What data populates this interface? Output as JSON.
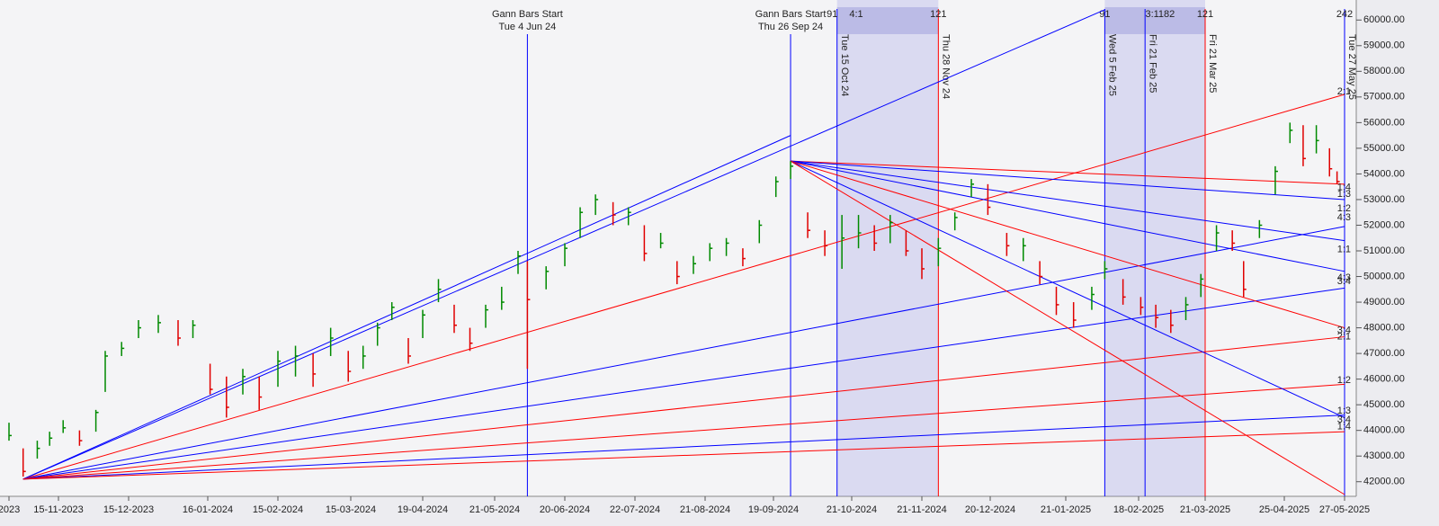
{
  "chart_data": {
    "type": "ohlc",
    "x": [
      "2023-10-18",
      "2023-10-26",
      "2023-11-03",
      "2023-11-10",
      "2023-11-17",
      "2023-11-24",
      "2023-12-01",
      "2023-12-05",
      "2023-12-12",
      "2023-12-19",
      "2023-12-27",
      "2024-01-04",
      "2024-01-10",
      "2024-01-17",
      "2024-01-24",
      "2024-01-31",
      "2024-02-07",
      "2024-02-15",
      "2024-02-22",
      "2024-02-29",
      "2024-03-07",
      "2024-03-14",
      "2024-03-21",
      "2024-03-28",
      "2024-04-04",
      "2024-04-12",
      "2024-04-19",
      "2024-04-26",
      "2024-05-03",
      "2024-05-10",
      "2024-05-17",
      "2024-05-24",
      "2024-05-31",
      "2024-06-04",
      "2024-06-12",
      "2024-06-20",
      "2024-06-27",
      "2024-07-04",
      "2024-07-12",
      "2024-07-19",
      "2024-07-26",
      "2024-08-02",
      "2024-08-09",
      "2024-08-16",
      "2024-08-23",
      "2024-08-30",
      "2024-09-06",
      "2024-09-13",
      "2024-09-20",
      "2024-09-26",
      "2024-10-03",
      "2024-10-10",
      "2024-10-17",
      "2024-10-24",
      "2024-10-31",
      "2024-11-07",
      "2024-11-14",
      "2024-11-21",
      "2024-11-28",
      "2024-12-05",
      "2024-12-12",
      "2024-12-19",
      "2024-12-27",
      "2025-01-03",
      "2025-01-10",
      "2025-01-17",
      "2025-01-24",
      "2025-01-31",
      "2025-02-05",
      "2025-02-12",
      "2025-02-19",
      "2025-02-26",
      "2025-03-05",
      "2025-03-12",
      "2025-03-19",
      "2025-03-26",
      "2025-04-02",
      "2025-04-07",
      "2025-04-14",
      "2025-04-21",
      "2025-04-28",
      "2025-05-05",
      "2025-05-12",
      "2025-05-19",
      "2025-05-23"
    ],
    "high": [
      44300,
      43300,
      43600,
      43950,
      44400,
      44000,
      44800,
      47100,
      47450,
      48300,
      48500,
      48300,
      48300,
      46600,
      46100,
      46400,
      46100,
      47100,
      47300,
      47000,
      48000,
      47100,
      47300,
      48200,
      49000,
      47600,
      48700,
      49900,
      48900,
      48000,
      48900,
      49600,
      51000,
      50600,
      50400,
      51300,
      52700,
      53200,
      52900,
      52700,
      52000,
      51700,
      50600,
      50800,
      51300,
      51500,
      51100,
      52200,
      53900,
      54500,
      52500,
      51800,
      52400,
      52400,
      52000,
      52400,
      51800,
      51100,
      51500,
      52500,
      53800,
      53600,
      51700,
      51500,
      50600,
      49600,
      49000,
      49600,
      50600,
      49900,
      49200,
      48900,
      48700,
      49200,
      50100,
      52000,
      51800,
      50600,
      52200,
      54300,
      56000,
      55900,
      55900,
      55000,
      54100
    ],
    "low": [
      43600,
      42200,
      42900,
      43400,
      43900,
      43400,
      43950,
      45500,
      46900,
      47600,
      47800,
      47300,
      47600,
      45400,
      44500,
      45400,
      44800,
      45700,
      46100,
      45700,
      46900,
      45900,
      46400,
      47300,
      48300,
      46600,
      47600,
      49000,
      47800,
      47100,
      48000,
      48700,
      50100,
      46400,
      49500,
      50400,
      51500,
      52400,
      52000,
      52000,
      50600,
      51100,
      49700,
      50100,
      50600,
      50800,
      50400,
      51300,
      53100,
      53800,
      51500,
      50800,
      50300,
      51100,
      51000,
      51300,
      50800,
      49900,
      50400,
      51800,
      53100,
      52400,
      50800,
      50600,
      49700,
      48500,
      48000,
      48700,
      49900,
      48900,
      48500,
      48000,
      47800,
      48300,
      49200,
      51000,
      51000,
      49200,
      51500,
      53200,
      55200,
      54300,
      54800,
      53900,
      53600
    ],
    "close": [
      43800,
      42400,
      43300,
      43700,
      44100,
      43600,
      44700,
      46900,
      47200,
      48000,
      48200,
      47600,
      48100,
      45600,
      44900,
      46100,
      45300,
      46700,
      46900,
      46200,
      47600,
      46300,
      46900,
      48000,
      48800,
      46900,
      48500,
      49500,
      48100,
      47400,
      48700,
      49000,
      50800,
      49100,
      50200,
      51100,
      52500,
      53000,
      52400,
      52500,
      50900,
      51300,
      50000,
      50500,
      51100,
      51300,
      50700,
      52000,
      53700,
      54300,
      51800,
      51200,
      51500,
      51700,
      51300,
      52100,
      51000,
      50300,
      51100,
      52300,
      53600,
      52700,
      51200,
      51200,
      50000,
      48900,
      48300,
      49300,
      50300,
      49200,
      48800,
      48400,
      48100,
      48900,
      49900,
      51700,
      51300,
      49500,
      52000,
      54100,
      55700,
      54600,
      55300,
      54200,
      53700
    ],
    "up_color": "#008a00",
    "down_color": "#e00000",
    "ylim": [
      41500,
      60500
    ],
    "yticks": [
      {
        "value": 42000,
        "label": "42000.00"
      },
      {
        "value": 43000,
        "label": "43000.00"
      },
      {
        "value": 44000,
        "label": "44000.00"
      },
      {
        "value": 45000,
        "label": "45000.00"
      },
      {
        "value": 46000,
        "label": "46000.00"
      },
      {
        "value": 47000,
        "label": "47000.00"
      },
      {
        "value": 48000,
        "label": "48000.00"
      },
      {
        "value": 49000,
        "label": "49000.00"
      },
      {
        "value": 50000,
        "label": "50000.00"
      },
      {
        "value": 51000,
        "label": "51000.00"
      },
      {
        "value": 52000,
        "label": "52000.00"
      },
      {
        "value": 53000,
        "label": "53000.00"
      },
      {
        "value": 54000,
        "label": "54000.00"
      },
      {
        "value": 55000,
        "label": "55000.00"
      },
      {
        "value": 56000,
        "label": "56000.00"
      },
      {
        "value": 57000,
        "label": "57000.00"
      },
      {
        "value": 58000,
        "label": "58000.00"
      },
      {
        "value": 59000,
        "label": "59000.00"
      },
      {
        "value": 60000,
        "label": "60000.00"
      }
    ],
    "xticks": [
      {
        "value": "2023-10-18",
        "label": "2023"
      },
      {
        "value": "2023-11-15",
        "label": "15-11-2023"
      },
      {
        "value": "2023-12-15",
        "label": "15-12-2023"
      },
      {
        "value": "2024-01-16",
        "label": "16-01-2024"
      },
      {
        "value": "2024-02-15",
        "label": "15-02-2024"
      },
      {
        "value": "2024-03-15",
        "label": "15-03-2024"
      },
      {
        "value": "2024-04-19",
        "label": "19-04-2024"
      },
      {
        "value": "2024-05-21",
        "label": "21-05-2024"
      },
      {
        "value": "2024-06-20",
        "label": "20-06-2024"
      },
      {
        "value": "2024-07-22",
        "label": "22-07-2024"
      },
      {
        "value": "2024-08-21",
        "label": "21-08-2024"
      },
      {
        "value": "2024-09-19",
        "label": "19-09-2024"
      },
      {
        "value": "2024-10-21",
        "label": "21-10-2024"
      },
      {
        "value": "2024-11-21",
        "label": "21-11-2024"
      },
      {
        "value": "2024-12-20",
        "label": "20-12-2024"
      },
      {
        "value": "2025-01-21",
        "label": "21-01-2025"
      },
      {
        "value": "2025-02-18",
        "label": "18-02-2025"
      },
      {
        "value": "2025-03-21",
        "label": "21-03-2025"
      },
      {
        "value": "2025-04-25",
        "label": "25-04-2025"
      },
      {
        "value": "2025-05-27",
        "label": "27-05-2025"
      }
    ],
    "gann_starts": [
      {
        "title": "Gann Bars Start",
        "date_label": "Tue 4 Jun 24",
        "date": "2024-06-04"
      },
      {
        "title": "Gann Bars Start",
        "date_label": "Thu 26 Sep 24",
        "date": "2024-09-26"
      }
    ],
    "zones": [
      {
        "start": "2024-10-15",
        "end": "2024-11-28"
      },
      {
        "start": "2025-02-05",
        "end": "2025-03-21"
      }
    ],
    "cycles": [
      {
        "date": "2024-10-15",
        "label": "Tue 15 Oct 24",
        "color": "#0000ff"
      },
      {
        "date": "2024-11-28",
        "label": "Thu 28 Nov 24",
        "color": "#ff0000"
      },
      {
        "date": "2025-02-05",
        "label": "Wed 5 Feb 25",
        "color": "#0000ff"
      },
      {
        "date": "2025-02-21",
        "label": "Fri 21 Feb 25",
        "color": "#0000ff"
      },
      {
        "date": "2025-03-21",
        "label": "Fri 21 Mar 25",
        "color": "#ff0000"
      },
      {
        "date": "2025-05-27",
        "label": "Tue 27 May 25",
        "color": "#0000ff"
      }
    ],
    "counters": [
      {
        "text": "91",
        "date": "2024-10-13"
      },
      {
        "text": "4:1",
        "date": "2024-10-23"
      },
      {
        "text": "121",
        "date": "2024-11-28"
      },
      {
        "text": "91",
        "date": "2025-02-05"
      },
      {
        "text": "3:1182",
        "date": "2025-02-28"
      },
      {
        "text": "121",
        "date": "2025-03-21"
      },
      {
        "text": "242",
        "date": "2025-05-27"
      }
    ],
    "fans": [
      {
        "origin": {
          "date": "2023-10-26",
          "price": 42100
        },
        "lines": [
          {
            "to": {
              "date": "2025-02-05",
              "price": 60400
            },
            "color": "#0000ff"
          },
          {
            "to": {
              "date": "2024-09-26",
              "price": 55500
            },
            "color": "#0000ff"
          },
          {
            "to": {
              "date": "2025-05-27",
              "price": 57100
            },
            "color": "#ff0000"
          },
          {
            "to": {
              "date": "2025-05-27",
              "price": 51950
            },
            "color": "#0000ff"
          },
          {
            "to": {
              "date": "2025-05-27",
              "price": 49550
            },
            "color": "#0000ff"
          },
          {
            "to": {
              "date": "2025-05-27",
              "price": 47650
            },
            "color": "#ff0000"
          },
          {
            "to": {
              "date": "2025-05-27",
              "price": 45800
            },
            "color": "#ff0000"
          },
          {
            "to": {
              "date": "2025-05-27",
              "price": 44600
            },
            "color": "#0000ff"
          },
          {
            "to": {
              "date": "2025-05-27",
              "price": 43950
            },
            "color": "#ff0000"
          }
        ]
      },
      {
        "origin": {
          "date": "2024-09-26",
          "price": 54500
        },
        "lines": [
          {
            "to": {
              "date": "2025-05-27",
              "price": 53600
            },
            "color": "#ff0000"
          },
          {
            "to": {
              "date": "2025-05-27",
              "price": 53000
            },
            "color": "#0000ff"
          },
          {
            "to": {
              "date": "2025-05-27",
              "price": 51400
            },
            "color": "#0000ff"
          },
          {
            "to": {
              "date": "2025-05-27",
              "price": 50200
            },
            "color": "#0000ff"
          },
          {
            "to": {
              "date": "2025-05-27",
              "price": 48000
            },
            "color": "#ff0000"
          },
          {
            "to": {
              "date": "2025-05-27",
              "price": 44500
            },
            "color": "#0000ff"
          },
          {
            "to": {
              "date": "2025-05-27",
              "price": 41500
            },
            "color": "#ff0000"
          }
        ]
      }
    ],
    "ratio_labels": [
      {
        "text": "2:1",
        "price": 57200
      },
      {
        "text": "1:4",
        "price": 53470
      },
      {
        "text": "1:3",
        "price": 53200
      },
      {
        "text": "1:2",
        "price": 52650
      },
      {
        "text": "4:3",
        "price": 52300
      },
      {
        "text": "1:1",
        "price": 51050
      },
      {
        "text": "4:3",
        "price": 49950
      },
      {
        "text": "3:4",
        "price": 49800
      },
      {
        "text": "3:4",
        "price": 47900
      },
      {
        "text": "2:1",
        "price": 47650
      },
      {
        "text": "1:2",
        "price": 45950
      },
      {
        "text": "1:3",
        "price": 44750
      },
      {
        "text": "3:4",
        "price": 44400
      },
      {
        "text": "1:4",
        "price": 44150
      }
    ]
  }
}
